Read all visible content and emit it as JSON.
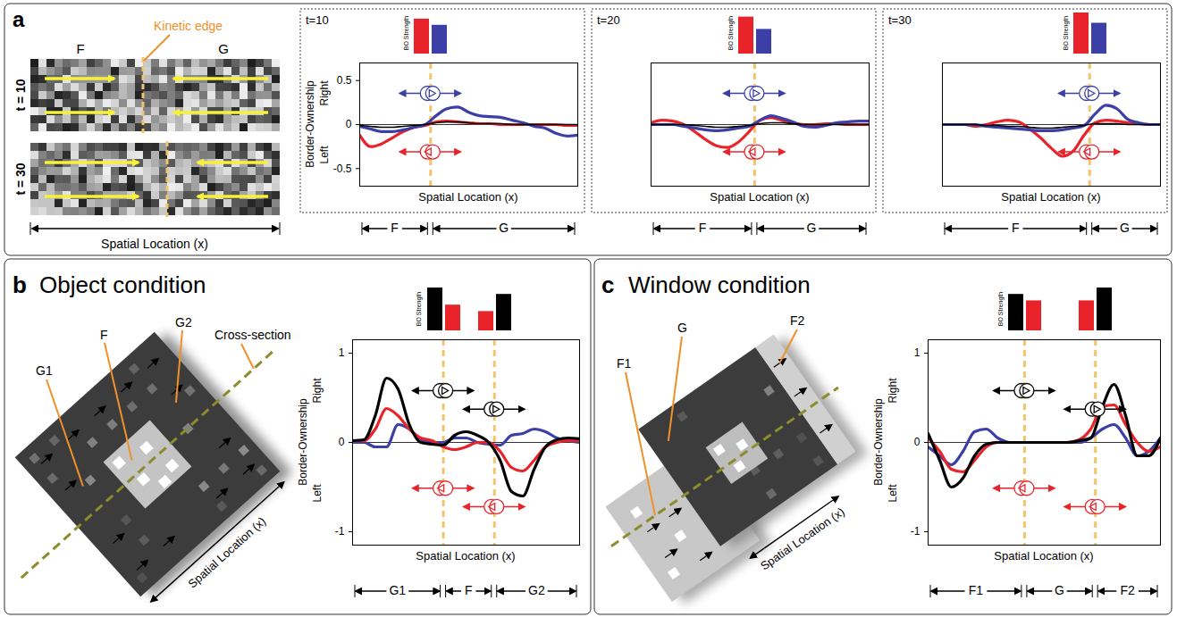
{
  "panels": [
    {
      "letter": "a",
      "stimulus": {
        "regions": [
          "F",
          "G"
        ],
        "edge_label": "Kinetic edge",
        "frames": [
          "t = 10",
          "t = 30"
        ],
        "xlabel": "Spatial Location (x)"
      }
    },
    {
      "letter": "b",
      "title": "Object condition",
      "stimulus": {
        "regions": [
          "G1",
          "F",
          "G2"
        ],
        "line_label": "Cross-section",
        "xlabel": "Spatial Location (x)"
      }
    },
    {
      "letter": "c",
      "title": "Window condition",
      "stimulus": {
        "regions": [
          "F1",
          "G",
          "F2"
        ],
        "xlabel": "Spatial Location (x)"
      }
    }
  ],
  "chart_data": [
    {
      "type": "line",
      "panel": "a",
      "title": "t=10",
      "xlabel": "Spatial Location (x)",
      "ylabel": "Border-Ownership",
      "ylabel_top": "Right",
      "ylabel_bottom": "Left",
      "tick_labels": "y",
      "x": [
        0,
        1,
        2,
        3,
        4,
        5,
        6,
        7,
        8,
        9,
        10,
        11,
        12,
        13,
        14,
        15,
        16,
        17,
        18,
        19,
        20
      ],
      "xlim": [
        0,
        20
      ],
      "ylim": [
        -0.7,
        0.7
      ],
      "yticks": [
        -0.5,
        0,
        0.5
      ],
      "edges": [
        6.5
      ],
      "regions": [
        {
          "label": "F",
          "range": [
            0,
            6.5
          ]
        },
        {
          "label": "G",
          "range": [
            6.5,
            20
          ]
        }
      ],
      "bo_strength": {
        "label": "BO Strength",
        "groups": [
          {
            "x": 6.5,
            "values": [
              0.85,
              0.7
            ],
            "colors": [
              "#e8242a",
              "#3b3fa6"
            ]
          }
        ]
      },
      "series": [
        {
          "color": "#e8242a",
          "values": [
            -0.12,
            -0.25,
            -0.22,
            -0.15,
            -0.08,
            -0.03,
            -0.01,
            0.03,
            0.04,
            0.03,
            0.02,
            0.01,
            0.01,
            0,
            0,
            0,
            0,
            0,
            0,
            -0.01,
            -0.01
          ]
        },
        {
          "color": "#3b3fa6",
          "values": [
            -0.02,
            -0.05,
            -0.08,
            -0.08,
            -0.06,
            -0.03,
            0,
            0.1,
            0.18,
            0.2,
            0.14,
            0.1,
            0.09,
            0.08,
            0.05,
            0.02,
            -0.02,
            -0.04,
            -0.1,
            -0.13,
            -0.12
          ]
        },
        {
          "color": "#000000",
          "values": [
            -0.01,
            -0.02,
            -0.03,
            -0.03,
            -0.02,
            -0.01,
            0,
            0.02,
            0.03,
            0.03,
            0.02,
            0.01,
            0.01,
            0.01,
            0,
            0,
            0,
            0,
            0,
            0,
            0
          ]
        }
      ]
    },
    {
      "type": "line",
      "panel": "a",
      "title": "t=20",
      "xlabel": "Spatial Location (x)",
      "tick_labels": false,
      "x": [
        0,
        1,
        2,
        3,
        4,
        5,
        6,
        7,
        8,
        9,
        10,
        11,
        12,
        13,
        14,
        15,
        16,
        17,
        18,
        19,
        20
      ],
      "xlim": [
        0,
        20
      ],
      "ylim": [
        -0.7,
        0.7
      ],
      "edges": [
        9.5
      ],
      "regions": [
        {
          "label": "F",
          "range": [
            0,
            9.5
          ]
        },
        {
          "label": "G",
          "range": [
            9.5,
            20
          ]
        }
      ],
      "bo_strength": {
        "label": "BO Strength",
        "groups": [
          {
            "x": 9.5,
            "values": [
              0.9,
              0.6
            ],
            "colors": [
              "#e8242a",
              "#3b3fa6"
            ]
          }
        ]
      },
      "series": [
        {
          "color": "#e8242a",
          "values": [
            0.02,
            0.05,
            0.04,
            0,
            -0.08,
            -0.17,
            -0.24,
            -0.26,
            -0.2,
            -0.08,
            0.05,
            0.08,
            0.05,
            0.02,
            0,
            0,
            0.01,
            0.01,
            0,
            0,
            0
          ]
        },
        {
          "color": "#3b3fa6",
          "values": [
            0,
            0,
            0,
            -0.02,
            -0.04,
            -0.06,
            -0.07,
            -0.06,
            -0.04,
            -0.02,
            0.05,
            0.1,
            0.07,
            0.03,
            -0.02,
            -0.03,
            -0.01,
            0.02,
            0.03,
            0.04,
            0.04
          ]
        },
        {
          "color": "#000000",
          "values": [
            0,
            0,
            0,
            0,
            -0.01,
            -0.02,
            -0.03,
            -0.03,
            -0.02,
            -0.01,
            0.01,
            0.02,
            0.02,
            0.01,
            0,
            0,
            0,
            0,
            0,
            0,
            0
          ]
        }
      ]
    },
    {
      "type": "line",
      "panel": "a",
      "title": "t=30",
      "xlabel": "Spatial Location (x)",
      "tick_labels": false,
      "x": [
        0,
        1,
        2,
        3,
        4,
        5,
        6,
        7,
        8,
        9,
        10,
        11,
        12,
        13,
        14,
        15,
        16,
        17,
        18,
        19,
        20
      ],
      "xlim": [
        0,
        20
      ],
      "ylim": [
        -0.7,
        0.7
      ],
      "edges": [
        13.5
      ],
      "regions": [
        {
          "label": "F",
          "range": [
            0,
            13.5
          ]
        },
        {
          "label": "G",
          "range": [
            13.5,
            20
          ]
        }
      ],
      "bo_strength": {
        "label": "BO Strength",
        "groups": [
          {
            "x": 13.5,
            "values": [
              1.0,
              0.75
            ],
            "colors": [
              "#e8242a",
              "#3b3fa6"
            ]
          }
        ]
      },
      "series": [
        {
          "color": "#e8242a",
          "values": [
            0,
            0,
            0,
            -0.02,
            0,
            0.03,
            0.05,
            0.03,
            -0.05,
            -0.15,
            -0.27,
            -0.36,
            -0.3,
            -0.12,
            0.02,
            0.05,
            0.04,
            0.02,
            0.01,
            0,
            0
          ]
        },
        {
          "color": "#3b3fa6",
          "values": [
            0,
            0,
            0,
            0,
            -0.02,
            -0.03,
            -0.04,
            -0.05,
            -0.06,
            -0.07,
            -0.07,
            -0.06,
            -0.04,
            -0.01,
            0.12,
            0.22,
            0.18,
            0.06,
            0.02,
            0,
            0
          ]
        },
        {
          "color": "#000000",
          "values": [
            0,
            0,
            0,
            0,
            -0.01,
            -0.01,
            -0.02,
            -0.02,
            -0.03,
            -0.04,
            -0.04,
            -0.03,
            -0.02,
            -0.01,
            0.01,
            0.01,
            0.01,
            0,
            0,
            0,
            0
          ]
        }
      ]
    },
    {
      "type": "line",
      "panel": "b",
      "xlabel": "Spatial Location (x)",
      "ylabel": "Border-Ownership",
      "ylabel_top": "Right",
      "ylabel_bottom": "Left",
      "tick_labels": "y",
      "x": [
        0,
        1,
        2,
        3,
        4,
        5,
        6,
        7,
        8,
        9,
        10,
        11,
        12,
        13,
        14,
        15,
        16,
        17,
        18,
        19,
        20
      ],
      "xlim": [
        0,
        20
      ],
      "ylim": [
        -1.15,
        1.15
      ],
      "yticks": [
        -1,
        0,
        1
      ],
      "edges": [
        8,
        12.5
      ],
      "regions": [
        {
          "label": "G1",
          "range": [
            0,
            8
          ]
        },
        {
          "label": "F",
          "range": [
            8,
            12.5
          ]
        },
        {
          "label": "G2",
          "range": [
            12.5,
            20
          ]
        }
      ],
      "bo_strength": {
        "label": "BO Strength",
        "groups": [
          {
            "x": 8,
            "values": [
              1.0,
              0.6
            ],
            "colors": [
              "#000000",
              "#e8242a"
            ]
          },
          {
            "x": 12.5,
            "values": [
              0.45,
              0.85
            ],
            "colors": [
              "#e8242a",
              "#000000"
            ]
          }
        ]
      },
      "series": [
        {
          "color": "#3b3fa6",
          "values": [
            0,
            0,
            -0.05,
            -0.05,
            0.2,
            0.15,
            0.03,
            0,
            0,
            0.05,
            0.05,
            0,
            -0.02,
            -0.03,
            0.08,
            0.1,
            0.15,
            0.12,
            0.05,
            0.02,
            0
          ]
        },
        {
          "color": "#e8242a",
          "values": [
            0.02,
            0.02,
            0.15,
            0.38,
            0.3,
            0.15,
            0.05,
            0.02,
            -0.05,
            -0.08,
            -0.05,
            0,
            0,
            -0.1,
            -0.28,
            -0.32,
            -0.2,
            -0.05,
            0,
            0.02,
            0.02
          ]
        },
        {
          "color": "#000000",
          "values": [
            0.02,
            0.03,
            0.3,
            0.72,
            0.6,
            0.2,
            0,
            -0.02,
            -0.03,
            0.08,
            0.12,
            0.08,
            0,
            -0.2,
            -0.55,
            -0.6,
            -0.3,
            -0.05,
            0.03,
            0.05,
            0.04
          ]
        }
      ]
    },
    {
      "type": "line",
      "panel": "c",
      "xlabel": "Spatial Location (x)",
      "ylabel": "Border-Ownership",
      "ylabel_top": "Right",
      "ylabel_bottom": "Left",
      "tick_labels": "y",
      "x": [
        0,
        1,
        2,
        3,
        4,
        5,
        6,
        7,
        8,
        9,
        10,
        11,
        12,
        13,
        14,
        15,
        16,
        17,
        18,
        19,
        20
      ],
      "xlim": [
        0,
        20
      ],
      "ylim": [
        -1.15,
        1.15
      ],
      "yticks": [
        -1,
        0,
        1
      ],
      "edges": [
        8.3,
        14.4
      ],
      "regions": [
        {
          "label": "F1",
          "range": [
            0,
            8.3
          ]
        },
        {
          "label": "G",
          "range": [
            8.3,
            14.4
          ]
        },
        {
          "label": "F2",
          "range": [
            14.4,
            20
          ]
        }
      ],
      "bo_strength": {
        "label": "BO Strength",
        "groups": [
          {
            "x": 8.3,
            "values": [
              0.85,
              0.7
            ],
            "colors": [
              "#000000",
              "#e8242a"
            ]
          },
          {
            "x": 14.4,
            "values": [
              0.7,
              1.0
            ],
            "colors": [
              "#e8242a",
              "#000000"
            ]
          }
        ]
      },
      "series": [
        {
          "color": "#3b3fa6",
          "values": [
            -0.05,
            -0.15,
            -0.25,
            -0.1,
            0.12,
            0.15,
            0.05,
            0,
            0,
            0,
            0,
            0,
            0,
            0,
            0.05,
            0.15,
            0.2,
            0.05,
            -0.15,
            -0.1,
            0.05
          ]
        },
        {
          "color": "#e8242a",
          "values": [
            0.05,
            -0.1,
            -0.3,
            -0.33,
            -0.2,
            -0.05,
            0,
            0,
            0,
            0,
            0,
            0,
            0,
            0.03,
            0.15,
            0.4,
            0.42,
            0.2,
            0,
            -0.1,
            -0.05
          ]
        },
        {
          "color": "#000000",
          "values": [
            0.1,
            -0.2,
            -0.5,
            -0.4,
            -0.15,
            -0.02,
            0,
            0,
            0,
            0,
            0,
            0,
            0,
            0.02,
            0.05,
            0.4,
            0.65,
            0.3,
            -0.15,
            -0.15,
            0.05
          ]
        }
      ]
    }
  ]
}
